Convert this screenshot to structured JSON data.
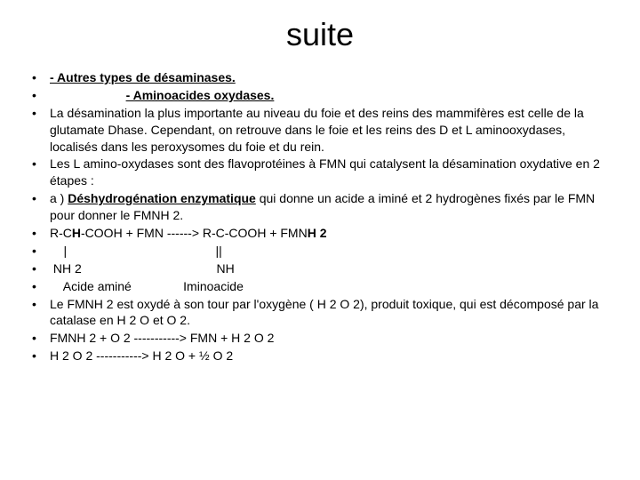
{
  "title": "suite",
  "colors": {
    "text": "#000000",
    "background": "#ffffff"
  },
  "typography": {
    "title_fontsize": 36,
    "body_fontsize": 14,
    "font_family": "Arial"
  },
  "bullets": {
    "b0_u": "- Autres types de désaminases.",
    "b1_pad": "                      ",
    "b1_u": "- Aminoacides oxydases.",
    "b2": "La désamination la plus importante au niveau du foie et des reins des mammifères est celle de la glutamate Dhase. Cependant, on retrouve dans le foie et les reins des D et L  aminooxydases, localisés dans les peroxysomes du foie et du rein.",
    "b3": "Les L amino-oxydases sont des flavoprotéines à FMN qui catalysent la désamination oxydative en 2 étapes :",
    "b4_a": "a ) ",
    "b4_b": "Déshydrogénation enzymatique",
    "b4_c": " qui donne un acide a iminé et 2 hydrogènes fixés par le FMN pour donner le FMNH 2.",
    "b5_a": "R-C",
    "b5_b": "H",
    "b5_c": "-COOH + FMN ------> R-C-COOH + FMN",
    "b5_d": "H 2",
    "b6": "    |                                           ||",
    "b7": " NH 2                                       NH",
    "b8": "    Acide aminé               Iminoacide",
    "b9": "Le FMNH 2 est oxydé à son tour par l'oxygène ( H 2 O 2), produit toxique, qui est décomposé par la catalase en H 2 O et O 2.",
    "b10": "FMNH 2 + O 2 -----------> FMN + H 2 O 2",
    "b11": "H 2 O 2 -----------> H 2 O + ½ O 2"
  }
}
